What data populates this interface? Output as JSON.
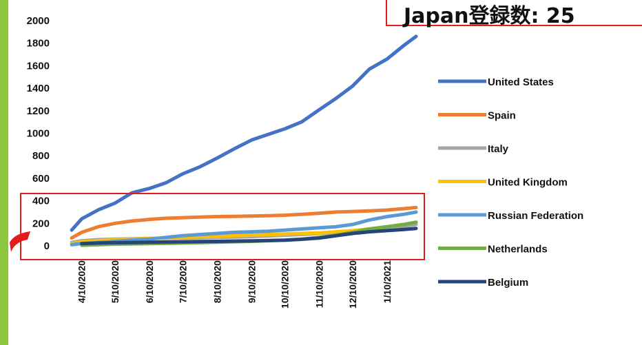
{
  "callout": {
    "text": "Japan登録数: 25"
  },
  "chart_data": {
    "type": "line",
    "title": "",
    "xlabel": "",
    "ylabel": "",
    "ylim": [
      0,
      2000
    ],
    "yticks": [
      0,
      200,
      400,
      600,
      800,
      1000,
      1200,
      1400,
      1600,
      1800,
      2000
    ],
    "xtick_labels": [
      "4/10/2020",
      "5/10/2020",
      "6/10/2020",
      "7/10/2020",
      "8/10/2020",
      "9/10/2020",
      "10/10/2020",
      "11/10/2020",
      "12/10/2020",
      "1/10/2021"
    ],
    "x": [
      "2020-04-01",
      "2020-04-10",
      "2020-04-25",
      "2020-05-10",
      "2020-05-25",
      "2020-06-10",
      "2020-06-25",
      "2020-07-10",
      "2020-07-25",
      "2020-08-10",
      "2020-08-25",
      "2020-09-10",
      "2020-09-25",
      "2020-10-10",
      "2020-10-25",
      "2020-11-10",
      "2020-11-25",
      "2020-12-10",
      "2020-12-25",
      "2021-01-10",
      "2021-01-25",
      "2021-02-05"
    ],
    "legend_position": "right",
    "grid": false,
    "series": [
      {
        "name": "United States",
        "color": "#4472c4",
        "values": [
          140,
          240,
          320,
          380,
          470,
          510,
          560,
          640,
          700,
          780,
          860,
          940,
          990,
          1040,
          1100,
          1210,
          1310,
          1420,
          1570,
          1660,
          1780,
          1860
        ]
      },
      {
        "name": "Spain",
        "color": "#ed7d31",
        "values": [
          70,
          120,
          170,
          200,
          220,
          235,
          245,
          250,
          255,
          260,
          262,
          265,
          268,
          272,
          280,
          290,
          300,
          305,
          310,
          318,
          330,
          340
        ]
      },
      {
        "name": "Italy",
        "color": "#a5a5a5",
        "values": [
          30,
          45,
          55,
          60,
          63,
          66,
          68,
          70,
          72,
          75,
          78,
          82,
          88,
          95,
          100,
          110,
          120,
          130,
          145,
          160,
          175,
          190
        ]
      },
      {
        "name": "United Kingdom",
        "color": "#ffc000",
        "values": [
          20,
          35,
          45,
          55,
          60,
          65,
          70,
          75,
          80,
          85,
          90,
          95,
          100,
          105,
          110,
          115,
          125,
          135,
          150,
          170,
          190,
          210
        ]
      },
      {
        "name": "Russian Federation",
        "color": "#5b9bd5",
        "values": [
          10,
          20,
          30,
          40,
          50,
          60,
          75,
          90,
          100,
          110,
          120,
          125,
          130,
          140,
          150,
          160,
          170,
          190,
          230,
          260,
          280,
          300
        ]
      },
      {
        "name": "Netherlands",
        "color": "#70ad47",
        "values": [
          null,
          5,
          10,
          15,
          18,
          20,
          22,
          25,
          28,
          32,
          36,
          40,
          45,
          50,
          60,
          75,
          95,
          120,
          150,
          170,
          190,
          210
        ]
      },
      {
        "name": "Belgium",
        "color": "#264478",
        "values": [
          null,
          20,
          25,
          28,
          30,
          32,
          34,
          36,
          38,
          40,
          42,
          44,
          47,
          50,
          58,
          70,
          90,
          110,
          125,
          135,
          145,
          155
        ]
      }
    ]
  }
}
